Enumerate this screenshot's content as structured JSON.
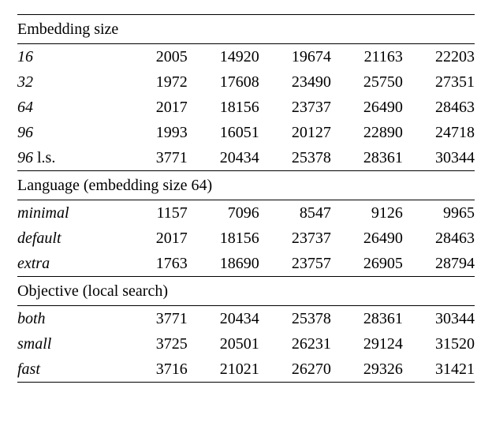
{
  "font": {
    "family": "Times New Roman",
    "size_pt": 20,
    "color": "#000000"
  },
  "background_color": "#ffffff",
  "rule_colors": {
    "top_bottom": "#000000",
    "inner": "#000000"
  },
  "columns": [
    {
      "key": "label",
      "width_pct": 21.5,
      "align": "left"
    },
    {
      "key": "v1",
      "width_pct": 15.7,
      "align": "right"
    },
    {
      "key": "v2",
      "width_pct": 15.7,
      "align": "right"
    },
    {
      "key": "v3",
      "width_pct": 15.7,
      "align": "right"
    },
    {
      "key": "v4",
      "width_pct": 15.7,
      "align": "right"
    },
    {
      "key": "v5",
      "width_pct": 15.7,
      "align": "right"
    }
  ],
  "sections": [
    {
      "heading": "Embedding size",
      "rows": [
        {
          "label": "16",
          "suffix": "",
          "values": [
            "2005",
            "14920",
            "19674",
            "21163",
            "22203"
          ]
        },
        {
          "label": "32",
          "suffix": "",
          "values": [
            "1972",
            "17608",
            "23490",
            "25750",
            "27351"
          ]
        },
        {
          "label": "64",
          "suffix": "",
          "values": [
            "2017",
            "18156",
            "23737",
            "26490",
            "28463"
          ]
        },
        {
          "label": "96",
          "suffix": "",
          "values": [
            "1993",
            "16051",
            "20127",
            "22890",
            "24718"
          ]
        },
        {
          "label": "96",
          "suffix": " l.s.",
          "values": [
            "3771",
            "20434",
            "25378",
            "28361",
            "30344"
          ]
        }
      ]
    },
    {
      "heading": "Language (embedding size 64)",
      "rows": [
        {
          "label": "minimal",
          "suffix": "",
          "values": [
            "1157",
            "7096",
            "8547",
            "9126",
            "9965"
          ]
        },
        {
          "label": "default",
          "suffix": "",
          "values": [
            "2017",
            "18156",
            "23737",
            "26490",
            "28463"
          ]
        },
        {
          "label": "extra",
          "suffix": "",
          "values": [
            "1763",
            "18690",
            "23757",
            "26905",
            "28794"
          ]
        }
      ]
    },
    {
      "heading": "Objective (local search)",
      "rows": [
        {
          "label": "both",
          "suffix": "",
          "values": [
            "3771",
            "20434",
            "25378",
            "28361",
            "30344"
          ]
        },
        {
          "label": "small",
          "suffix": "",
          "values": [
            "3725",
            "20501",
            "26231",
            "29124",
            "31520"
          ]
        },
        {
          "label": "fast",
          "suffix": "",
          "values": [
            "3716",
            "21021",
            "26270",
            "29326",
            "31421"
          ]
        }
      ]
    }
  ]
}
